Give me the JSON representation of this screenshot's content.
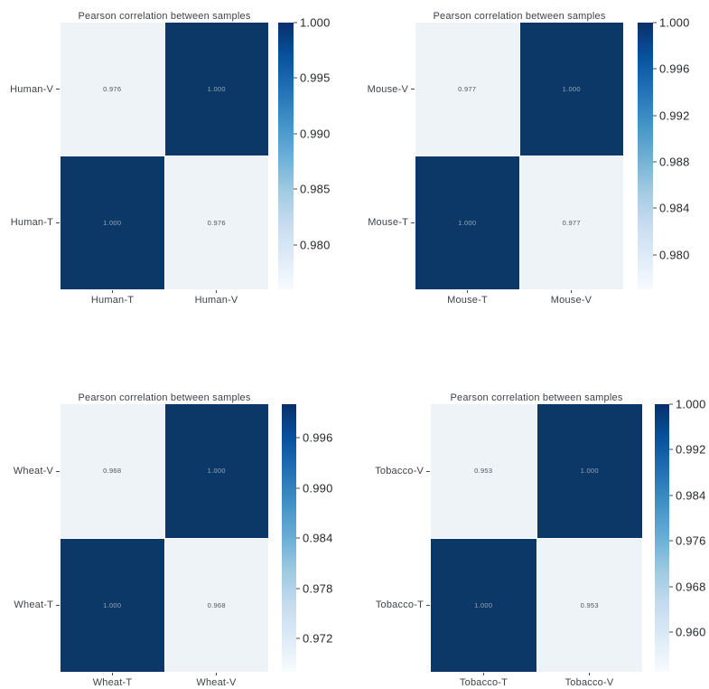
{
  "theme": {
    "cell_dark": "#0b3866",
    "cell_light": "#eef3f8",
    "value_text_on_dark": "#97a6b8",
    "value_text_on_light": "#4e545c",
    "axis_text_color": "#3e4248",
    "colorbar_label_color": "#26282e",
    "tick_mark_color": "#4a4a4a",
    "colorbar_gradient_top_to_bottom": [
      "#08306b",
      "#08519c",
      "#2171b5",
      "#4292c6",
      "#6baed6",
      "#9ecae1",
      "#c6dbef",
      "#deebf7",
      "#f7fbff"
    ]
  },
  "chart_data": [
    {
      "type": "heatmap",
      "title": "Pearson correlation between samples",
      "x": [
        "Human-T",
        "Human-V"
      ],
      "y": [
        "Human-V",
        "Human-T"
      ],
      "values": [
        [
          0.976,
          1.0
        ],
        [
          1.0,
          0.976
        ]
      ],
      "value_labels": [
        [
          "0.976",
          "1.000"
        ],
        [
          "1.000",
          "0.976"
        ]
      ],
      "colormap": "Blues",
      "colorbar": {
        "vmin": 0.976,
        "vmax": 1.0,
        "ticks": [
          1.0,
          0.995,
          0.99,
          0.985,
          0.98
        ]
      }
    },
    {
      "type": "heatmap",
      "title": "Pearson correlation between samples",
      "x": [
        "Mouse-T",
        "Mouse-V"
      ],
      "y": [
        "Mouse-V",
        "Mouse-T"
      ],
      "values": [
        [
          0.977,
          1.0
        ],
        [
          1.0,
          0.977
        ]
      ],
      "value_labels": [
        [
          "0.977",
          "1.000"
        ],
        [
          "1.000",
          "0.977"
        ]
      ],
      "colormap": "Blues",
      "colorbar": {
        "vmin": 0.977,
        "vmax": 1.0,
        "ticks": [
          1.0,
          0.996,
          0.992,
          0.988,
          0.984,
          0.98
        ]
      }
    },
    {
      "type": "heatmap",
      "title": "Pearson correlation between samples",
      "x": [
        "Wheat-T",
        "Wheat-V"
      ],
      "y": [
        "Wheat-V",
        "Wheat-T"
      ],
      "values": [
        [
          0.968,
          1.0
        ],
        [
          1.0,
          0.968
        ]
      ],
      "value_labels": [
        [
          "0.968",
          "1.000"
        ],
        [
          "1.000",
          "0.968"
        ]
      ],
      "colormap": "Blues",
      "colorbar": {
        "vmin": 0.968,
        "vmax": 1.0,
        "ticks": [
          0.996,
          0.99,
          0.984,
          0.978,
          0.972
        ]
      }
    },
    {
      "type": "heatmap",
      "title": "Pearson correlation between samples",
      "x": [
        "Tobacco-T",
        "Tobacco-V"
      ],
      "y": [
        "Tobacco-V",
        "Tobacco-T"
      ],
      "values": [
        [
          0.953,
          1.0
        ],
        [
          1.0,
          0.953
        ]
      ],
      "value_labels": [
        [
          "0.953",
          "1.000"
        ],
        [
          "1.000",
          "0.953"
        ]
      ],
      "colormap": "Blues",
      "colorbar": {
        "vmin": 0.953,
        "vmax": 1.0,
        "ticks": [
          1.0,
          0.992,
          0.984,
          0.976,
          0.968,
          0.96
        ]
      }
    }
  ]
}
